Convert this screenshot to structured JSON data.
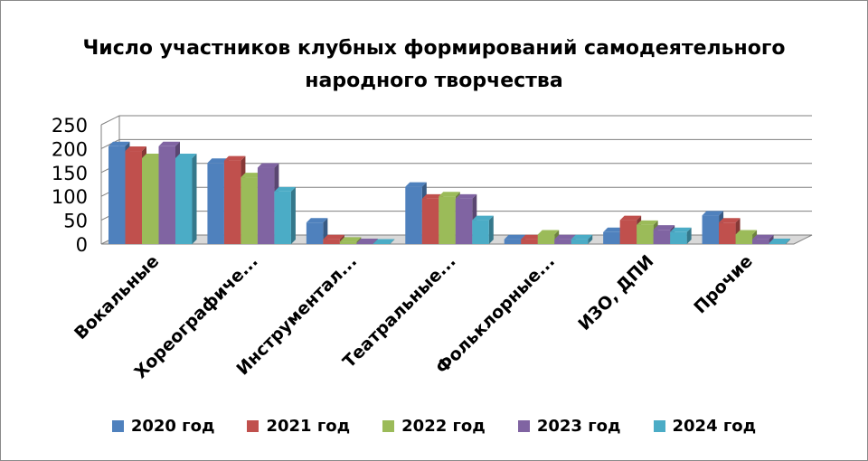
{
  "chart_data": {
    "type": "bar",
    "title_lines": [
      "Число участников клубных формирований самодеятельного",
      "народного творчества"
    ],
    "categories": [
      "Вокальные",
      "Хореографиче...",
      "Инструментал...",
      "Театральные...",
      "Фольклорные...",
      "ИЗО, ДПИ",
      "Прочие"
    ],
    "series": [
      {
        "name": "2020 год",
        "color": "#4F81BD",
        "values": [
          205,
          170,
          45,
          120,
          10,
          25,
          60
        ]
      },
      {
        "name": "2021 год",
        "color": "#C0504D",
        "values": [
          195,
          175,
          10,
          95,
          10,
          50,
          45
        ]
      },
      {
        "name": "2022 год",
        "color": "#9BBB59",
        "values": [
          180,
          140,
          5,
          100,
          20,
          40,
          20
        ]
      },
      {
        "name": "2023 год",
        "color": "#8064A2",
        "values": [
          205,
          160,
          2,
          95,
          10,
          30,
          10
        ]
      },
      {
        "name": "2024 год",
        "color": "#4BACC6",
        "values": [
          180,
          110,
          1,
          50,
          10,
          25,
          2
        ]
      }
    ],
    "y_ticks": [
      "0",
      "50",
      "100",
      "150",
      "200",
      "250"
    ],
    "ylim": [
      0,
      250
    ],
    "grid": true,
    "legend_position": "bottom"
  }
}
